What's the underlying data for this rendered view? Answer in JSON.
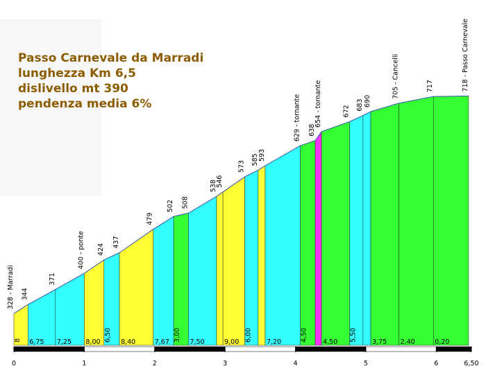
{
  "chart_data": {
    "type": "area",
    "title_lines": [
      "Passo Carnevale da Marradi",
      "lunghezza Km 6,5",
      "dislivello mt 390",
      "pendenza media 6%"
    ],
    "x": [
      0,
      0.2,
      0.59,
      1.0,
      1.28,
      1.5,
      1.98,
      2.27,
      2.48,
      2.88,
      2.97,
      3.28,
      3.47,
      3.57,
      4.07,
      4.28,
      4.37,
      4.77,
      4.96,
      5.07,
      5.47,
      5.96,
      6.46
    ],
    "elevations": [
      328,
      344,
      371,
      400,
      424,
      437,
      479,
      502,
      508,
      538,
      546,
      573,
      585,
      593,
      629,
      638,
      654,
      672,
      683,
      690,
      705,
      717,
      718
    ],
    "point_labels": [
      "328 - Marradi",
      "344",
      "371",
      "400 - ponte",
      "424",
      "437",
      "479",
      "502",
      "508",
      "538",
      "546",
      "573",
      "585",
      "593",
      "629 - tornante",
      "638",
      "654 - tornante",
      "672",
      "683",
      "690",
      "705 - Cancelli",
      "717",
      "718 - Passo Carnevale"
    ],
    "gradients": [
      8,
      6.75,
      7.25,
      8,
      6.5,
      8.4,
      7.67,
      3,
      7.5,
      9,
      9,
      6,
      6,
      7.2,
      4.5,
      9,
      4.5,
      5.5,
      5.5,
      3.75,
      2.4,
      0.2
    ],
    "value_labels": [
      "8",
      "6,75",
      "7,25",
      "8,00",
      "6,50",
      "8,40",
      "7,67",
      "3,00",
      "7,50",
      null,
      "9,00",
      "6,00",
      null,
      "7,20",
      "4,50",
      null,
      "4,50",
      "5,50",
      null,
      "3,75",
      "2,40",
      "0,20"
    ],
    "colors": [
      "#ffff33",
      "#33ffff",
      "#33ffff",
      "#ffff33",
      "#33ffff",
      "#ffff33",
      "#33ffff",
      "#33ff33",
      "#33ffff",
      "#ffff33",
      "#ffff33",
      "#33ffff",
      "#ffff33",
      "#33ffff",
      "#33ff33",
      "#ff33ff",
      "#33ff33",
      "#33ffff",
      "#33ffff",
      "#33ff33",
      "#33ff33",
      "#33ff33"
    ],
    "xlim": [
      0,
      6.5
    ],
    "ylim": [
      271,
      731
    ],
    "xticks": [
      0,
      1,
      2,
      3,
      4,
      5,
      6,
      {
        "value": 6.5,
        "label": "6,50"
      }
    ]
  }
}
